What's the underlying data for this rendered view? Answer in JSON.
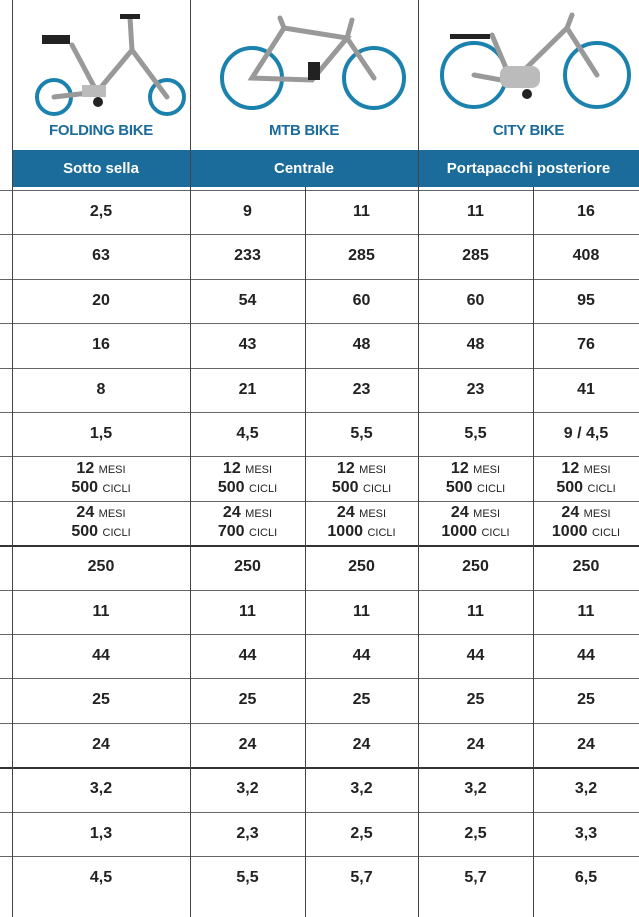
{
  "header": {
    "columns": [
      {
        "name": "FOLDING BIKE",
        "position": "Sotto sella"
      },
      {
        "name": "MTB BIKE",
        "position": "Centrale"
      },
      {
        "name": "CITY BIKE",
        "position": "Portapacchi posteriore"
      }
    ]
  },
  "table": {
    "rows": [
      [
        "2,5",
        "9",
        "11",
        "11",
        "16"
      ],
      [
        "63",
        "233",
        "285",
        "285",
        "408"
      ],
      [
        "20",
        "54",
        "60",
        "60",
        "95"
      ],
      [
        "16",
        "43",
        "48",
        "48",
        "76"
      ],
      [
        "8",
        "21",
        "23",
        "23",
        "41"
      ],
      [
        "1,5",
        "4,5",
        "5,5",
        "5,5",
        "9 / 4,5"
      ],
      [
        [
          [
            "12",
            "MESI"
          ],
          [
            "500",
            "CICLI"
          ]
        ],
        [
          [
            "12",
            "MESI"
          ],
          [
            "500",
            "CICLI"
          ]
        ],
        [
          [
            "12",
            "MESI"
          ],
          [
            "500",
            "CICLI"
          ]
        ],
        [
          [
            "12",
            "MESI"
          ],
          [
            "500",
            "CICLI"
          ]
        ],
        [
          [
            "12",
            "MESI"
          ],
          [
            "500",
            "CICLI"
          ]
        ]
      ],
      [
        [
          [
            "24",
            "MESI"
          ],
          [
            "500",
            "CICLI"
          ]
        ],
        [
          [
            "24",
            "MESI"
          ],
          [
            "700",
            "CICLI"
          ]
        ],
        [
          [
            "24",
            "MESI"
          ],
          [
            "1000",
            "CICLI"
          ]
        ],
        [
          [
            "24",
            "MESI"
          ],
          [
            "1000",
            "CICLI"
          ]
        ],
        [
          [
            "24",
            "MESI"
          ],
          [
            "1000",
            "CICLI"
          ]
        ]
      ],
      [
        "250",
        "250",
        "250",
        "250",
        "250"
      ],
      [
        "11",
        "11",
        "11",
        "11",
        "11"
      ],
      [
        "44",
        "44",
        "44",
        "44",
        "44"
      ],
      [
        "25",
        "25",
        "25",
        "25",
        "25"
      ],
      [
        "24",
        "24",
        "24",
        "24",
        "24"
      ],
      [
        "3,2",
        "3,2",
        "3,2",
        "3,2",
        "3,2"
      ],
      [
        "1,3",
        "2,3",
        "2,5",
        "2,5",
        "3,3"
      ],
      [
        "4,5",
        "5,5",
        "5,7",
        "5,7",
        "6,5"
      ]
    ]
  }
}
